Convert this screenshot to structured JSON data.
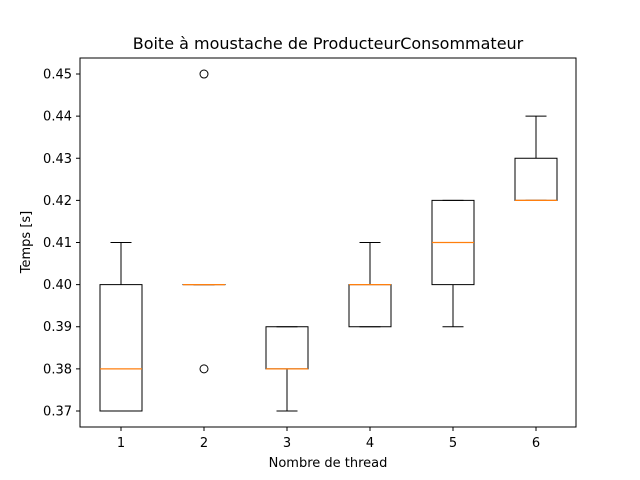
{
  "chart_data": {
    "type": "box",
    "title": "Boite à moustache de ProducteurConsommateur",
    "xlabel": "Nombre de thread",
    "ylabel": "Temps [s]",
    "categories": [
      "1",
      "2",
      "3",
      "4",
      "5",
      "6"
    ],
    "ylim": [
      0.3662,
      0.4538
    ],
    "yticks": [
      "0.37",
      "0.38",
      "0.39",
      "0.40",
      "0.41",
      "0.42",
      "0.43",
      "0.44",
      "0.45"
    ],
    "grid": false,
    "boxes": [
      {
        "category": "1",
        "whisker_low": 0.37,
        "q1": 0.37,
        "median": 0.38,
        "q3": 0.4,
        "whisker_high": 0.41,
        "outliers": []
      },
      {
        "category": "2",
        "whisker_low": 0.4,
        "q1": 0.4,
        "median": 0.4,
        "q3": 0.4,
        "whisker_high": 0.4,
        "outliers": [
          0.45,
          0.38
        ]
      },
      {
        "category": "3",
        "whisker_low": 0.37,
        "q1": 0.38,
        "median": 0.38,
        "q3": 0.39,
        "whisker_high": 0.39,
        "outliers": []
      },
      {
        "category": "4",
        "whisker_low": 0.39,
        "q1": 0.39,
        "median": 0.4,
        "q3": 0.4,
        "whisker_high": 0.41,
        "outliers": []
      },
      {
        "category": "5",
        "whisker_low": 0.39,
        "q1": 0.4,
        "median": 0.41,
        "q3": 0.42,
        "whisker_high": 0.42,
        "outliers": []
      },
      {
        "category": "6",
        "whisker_low": 0.42,
        "q1": 0.42,
        "median": 0.42,
        "q3": 0.43,
        "whisker_high": 0.44,
        "outliers": []
      }
    ],
    "colors": {
      "box": "#000000",
      "median": "#ff7f0e",
      "outlier": "#000000"
    }
  }
}
